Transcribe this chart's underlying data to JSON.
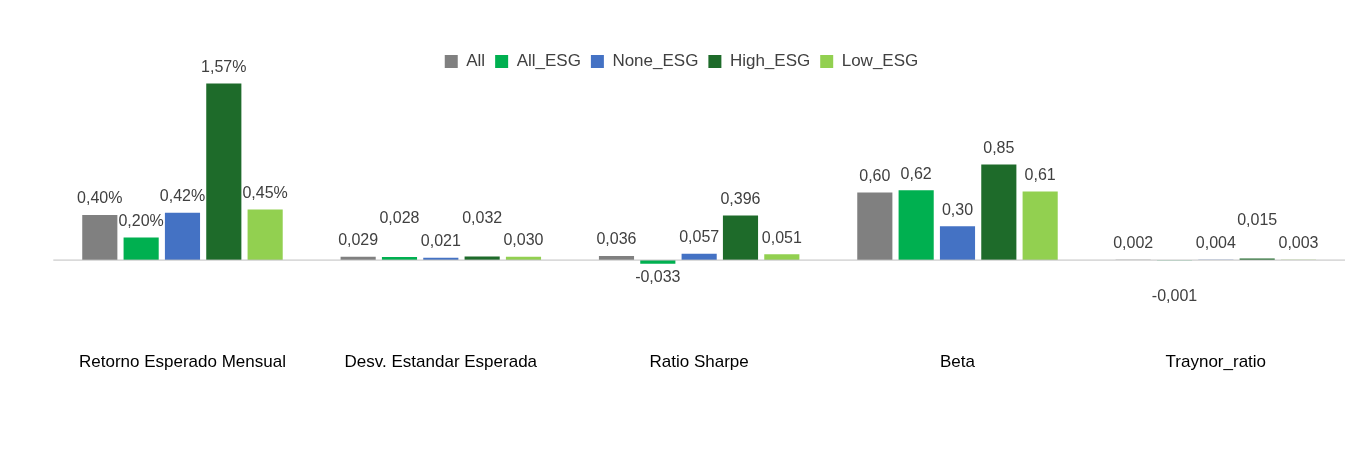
{
  "chart_data": {
    "type": "bar",
    "categories": [
      "Retorno Esperado Mensual",
      "Desv. Estandar Esperada",
      "Ratio Sharpe",
      "Beta",
      "Traynor_ratio"
    ],
    "series": [
      {
        "name": "All",
        "color": "#808080",
        "values": [
          0.4,
          0.029,
          0.036,
          0.6,
          0.002
        ],
        "value_labels": [
          "0,40%",
          "0,029",
          "0,036",
          "0,60",
          "0,002"
        ]
      },
      {
        "name": "All_ESG",
        "color": "#00b050",
        "values": [
          0.2,
          0.028,
          -0.033,
          0.62,
          -0.001
        ],
        "value_labels": [
          "0,20%",
          "0,028",
          "-0,033",
          "0,62",
          "-0,001"
        ]
      },
      {
        "name": "None_ESG",
        "color": "#4472c4",
        "values": [
          0.42,
          0.021,
          0.057,
          0.3,
          0.004
        ],
        "value_labels": [
          "0,42%",
          "0,021",
          "0,057",
          "0,30",
          "0,004"
        ]
      },
      {
        "name": "High_ESG",
        "color": "#1e6b2a",
        "values": [
          1.57,
          0.032,
          0.396,
          0.85,
          0.015
        ],
        "value_labels": [
          "1,57%",
          "0,032",
          "0,396",
          "0,85",
          "0,015"
        ]
      },
      {
        "name": "Low_ESG",
        "color": "#92d050",
        "values": [
          0.45,
          0.03,
          0.051,
          0.61,
          0.003
        ],
        "value_labels": [
          "0,45%",
          "0,030",
          "0,051",
          "0,61",
          "0,003"
        ]
      }
    ],
    "tick_labels": "x",
    "grid": false,
    "legend": "top"
  }
}
